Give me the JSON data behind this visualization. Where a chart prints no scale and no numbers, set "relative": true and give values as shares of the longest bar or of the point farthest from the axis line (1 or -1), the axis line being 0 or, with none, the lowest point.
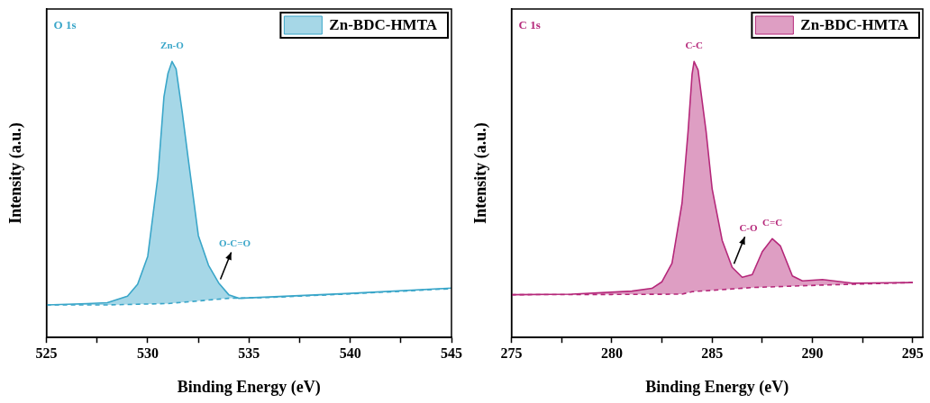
{
  "chart_data": [
    {
      "type": "area",
      "xlabel": "Binding Energy (eV)",
      "ylabel": "Intensity (a.u.)",
      "relative": true,
      "legend": "top right",
      "xlim": [
        525,
        545
      ],
      "xticks": [
        525,
        {
          "value": 527.5,
          "label": null
        },
        530,
        {
          "value": 532.5,
          "label": null
        },
        535,
        {
          "value": 537.5,
          "label": null
        },
        540,
        {
          "value": 542.5,
          "label": null
        },
        545
      ],
      "annotations": [
        "O 1s",
        {
          "text": "Zn-O",
          "x": 531.2,
          "y": 1
        },
        {
          "text": "O-C=O",
          "x": 533.5,
          "y": 0.198
        }
      ],
      "series": [
        {
          "name": "Zn-BDC-HMTA",
          "type": "area",
          "color": "#3aa6c9",
          "x": [
            525,
            527,
            528,
            529,
            529.5,
            530,
            530.5,
            530.8,
            531,
            531.2,
            531.4,
            531.7,
            532,
            532.5,
            533,
            533.5,
            534,
            534.5,
            536,
            540,
            545
          ],
          "values": [
            0.118,
            0.123,
            0.126,
            0.15,
            0.193,
            0.294,
            0.583,
            0.872,
            0.957,
            1,
            0.973,
            0.818,
            0.647,
            0.369,
            0.262,
            0.198,
            0.155,
            0.142,
            0.147,
            0.16,
            0.179
          ]
        },
        {
          "type": "line",
          "line_style": "dashed",
          "color": "#3aa6c9",
          "x": [
            525,
            528,
            531,
            534,
            536,
            540,
            545
          ],
          "values": [
            0.118,
            0.118,
            0.123,
            0.142,
            0.145,
            0.158,
            0.177
          ]
        }
      ]
    },
    {
      "type": "area",
      "xlabel": "Binding Energy (eV)",
      "ylabel": "Intensity (a.u.)",
      "relative": true,
      "legend": "top right",
      "xlim": [
        275,
        295.5
      ],
      "xticks": [
        275,
        {
          "value": 277.5,
          "label": null
        },
        280,
        {
          "value": 282.5,
          "label": null
        },
        285,
        {
          "value": 287.5,
          "label": null
        },
        290,
        {
          "value": 292.5,
          "label": null
        },
        295
      ],
      "annotations": [
        "C 1s",
        {
          "text": "C-C",
          "x": 284.1,
          "y": 1
        },
        {
          "text": "C-O",
          "x": 286,
          "y": 0.254
        },
        {
          "text": "C=C",
          "x": 288,
          "y": 0.358
        }
      ],
      "series": [
        {
          "name": "Zn-BDC-HMTA",
          "type": "area",
          "color": "#b5287a",
          "x": [
            275,
            278,
            281,
            282,
            282.5,
            283,
            283.5,
            283.8,
            284,
            284.1,
            284.3,
            284.7,
            285,
            285.5,
            286,
            286.5,
            287,
            287.5,
            288,
            288.4,
            289,
            289.5,
            290.5,
            292,
            295
          ],
          "values": [
            0.155,
            0.157,
            0.168,
            0.178,
            0.202,
            0.269,
            0.487,
            0.746,
            0.953,
            1,
            0.969,
            0.746,
            0.539,
            0.352,
            0.254,
            0.218,
            0.228,
            0.311,
            0.358,
            0.332,
            0.223,
            0.205,
            0.21,
            0.197,
            0.199
          ]
        },
        {
          "type": "line",
          "line_style": "dashed",
          "color": "#b5287a",
          "x": [
            275,
            280,
            283.5,
            284,
            287,
            290.5,
            295
          ],
          "values": [
            0.155,
            0.156,
            0.157,
            0.166,
            0.181,
            0.19,
            0.199
          ]
        }
      ]
    }
  ]
}
